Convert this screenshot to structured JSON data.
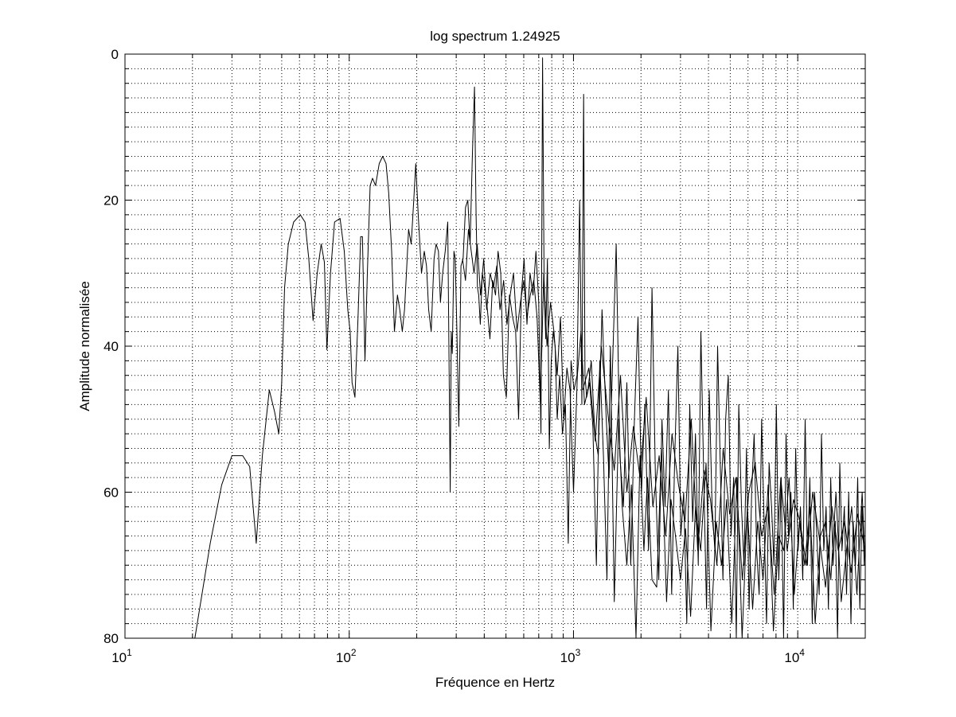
{
  "chart_data": {
    "type": "line",
    "title": "log spectrum 1.24925",
    "xlabel": "Fréquence en Hertz",
    "ylabel": "Amplitude normalisée",
    "xscale": "log",
    "xlim": [
      10,
      20000
    ],
    "ylim": [
      0,
      80
    ],
    "y_reversed": true,
    "grid": true,
    "grid_style": "dotted",
    "line_color": "#000000",
    "x_ticks": [
      {
        "value": 10,
        "base": "10",
        "exp": "1"
      },
      {
        "value": 100,
        "base": "10",
        "exp": "2"
      },
      {
        "value": 1000,
        "base": "10",
        "exp": "3"
      },
      {
        "value": 10000,
        "base": "10",
        "exp": "4"
      }
    ],
    "y_ticks": [
      {
        "value": 0,
        "label": "0"
      },
      {
        "value": 20,
        "label": "20"
      },
      {
        "value": 40,
        "label": "40"
      },
      {
        "value": 60,
        "label": "60"
      },
      {
        "value": 80,
        "label": "80"
      }
    ],
    "series": [
      {
        "x": [
          20.5,
          24,
          27,
          30,
          33.5,
          36,
          38.5,
          41,
          44,
          46.5,
          48.5,
          50,
          51.5,
          53.5,
          56.5,
          60.5,
          63.5,
          66,
          69,
          72,
          75,
          77.5,
          79.5,
          82.5,
          86,
          91,
          95,
          98.5,
          101,
          103,
          106,
          109.5,
          112.5,
          114.5,
          117.5,
          120.5,
          124,
          127,
          131,
          136,
          141,
          146,
          150,
          154.5,
          159,
          164,
          168,
          172.5,
          176.5,
          180,
          184,
          189,
          194,
          198,
          203,
          210,
          216,
          221,
          226,
          232,
          239,
          244,
          250,
          255,
          261,
          268,
          275,
          280,
          282,
          285,
          288,
          293,
          297,
          302,
          308,
          315,
          322,
          330,
          338,
          346,
          354,
          362,
          368,
          373,
          378,
          384,
          392,
          402,
          413,
          424,
          436,
          449,
          461,
          474,
          487,
          502,
          518,
          535,
          552,
          569,
          585,
          602,
          620,
          640,
          660,
          680,
          700,
          716,
          728,
          740,
          752,
          765,
          780,
          796,
          812,
          828,
          846,
          868,
          893,
          920,
          948,
          975,
          1005,
          1037,
          1065,
          1090,
          1110,
          1125,
          1145,
          1180,
          1220,
          1265,
          1310,
          1360,
          1410,
          1460,
          1520,
          1590,
          1650,
          1730,
          1810,
          1900,
          1980,
          2060,
          2140,
          2240,
          2350,
          2470,
          2600,
          2720,
          2850,
          3000,
          3160,
          3330,
          3500,
          3690,
          3900,
          4100,
          4330,
          4570,
          4820,
          5080,
          5360,
          5650,
          5960,
          6290,
          6630,
          7000,
          7380,
          7790,
          8220,
          8670,
          9150,
          9650,
          10180,
          10740,
          11330,
          11960,
          12620,
          13310,
          14040,
          14810,
          15630,
          16490,
          17400,
          18360,
          19370,
          20000
        ],
        "values": [
          80,
          67,
          59,
          55,
          55,
          56.5,
          67,
          55,
          46,
          49,
          52,
          45,
          32,
          26,
          23,
          22,
          23,
          28,
          36.5,
          30,
          26,
          28.5,
          40.5,
          30,
          23,
          22.5,
          27,
          35,
          38,
          45,
          47,
          36,
          25,
          25,
          42,
          30,
          18,
          17,
          18,
          15,
          14,
          15,
          19,
          27,
          38,
          33,
          35,
          38,
          35,
          30,
          24,
          26,
          20,
          15,
          22,
          30,
          27,
          29,
          35,
          38,
          28,
          26,
          27,
          34,
          30,
          27,
          23,
          49,
          60,
          38,
          41,
          27,
          28,
          38,
          51,
          29,
          28,
          21,
          20,
          26,
          14,
          4.5,
          22,
          32,
          33,
          37,
          30,
          32,
          35,
          39,
          31,
          33,
          27,
          30,
          44,
          47,
          33,
          36,
          38,
          50,
          33,
          28,
          37,
          30,
          33,
          27,
          34,
          52,
          0.5,
          32,
          39,
          28,
          54,
          42,
          38,
          40,
          50,
          44,
          52,
          48,
          67,
          42,
          46,
          44,
          20,
          48,
          5.5,
          44,
          47,
          45,
          51,
          70,
          42,
          55,
          72,
          40,
          75,
          50,
          62,
          70,
          59,
          80,
          55,
          68,
          58,
          72,
          73,
          54,
          75,
          61,
          66,
          72,
          65,
          77,
          62,
          68,
          56,
          79,
          64,
          70,
          61,
          78,
          58,
          80,
          62,
          76,
          64,
          72,
          59,
          79,
          66,
          68,
          58,
          74,
          64,
          70,
          62,
          78,
          66,
          64,
          72,
          60,
          75,
          68,
          62,
          74,
          60,
          70
        ]
      },
      {
        "x": [
          320,
          330,
          340,
          350,
          360,
          372,
          385,
          398,
          410,
          425,
          440,
          455,
          470,
          488,
          505,
          522,
          540,
          560,
          580,
          600,
          620,
          642,
          665,
          688,
          712,
          737,
          762,
          790,
          818,
          846,
          875,
          905,
          935,
          965,
          1000,
          1040,
          1080,
          1120,
          1160,
          1200,
          1245,
          1290,
          1340,
          1390,
          1440,
          1495,
          1550,
          1610,
          1670,
          1730,
          1800,
          1870,
          1940,
          2010,
          2080,
          2160,
          2240,
          2320,
          2400,
          2480,
          2560,
          2650,
          2740,
          2830,
          2920,
          3010,
          3100,
          3200,
          3300,
          3400,
          3500,
          3600,
          3700,
          3810,
          3920,
          4030,
          4150,
          4270,
          4390,
          4510,
          4640,
          4770,
          4900,
          5040,
          5180,
          5320,
          5460,
          5610,
          5760,
          5910,
          6070,
          6230,
          6390,
          6560,
          6730,
          6900,
          7080,
          7260,
          7450,
          7640,
          7830,
          8030,
          8230,
          8440,
          8650,
          8870,
          9090,
          9320,
          9550,
          9790,
          10030,
          10280,
          10530,
          10790,
          11050,
          11320,
          11600,
          11880,
          12170,
          12460,
          12760,
          13070,
          13380,
          13700,
          14030,
          14360,
          14700,
          15050,
          15400,
          15760,
          16130,
          16500,
          16880,
          17270,
          17670,
          18080,
          18500,
          18920,
          19350,
          19800
        ],
        "values": [
          28,
          31,
          24,
          27,
          30,
          26,
          33,
          28,
          35,
          30,
          32,
          29,
          35,
          31,
          37,
          33,
          30,
          38,
          34,
          31,
          36,
          33,
          31,
          36,
          48,
          30,
          40,
          34,
          38,
          44,
          36,
          50,
          43,
          46,
          60,
          44,
          38,
          48,
          46,
          42,
          52,
          55,
          35,
          48,
          58,
          42,
          26,
          55,
          62,
          45,
          70,
          50,
          36,
          60,
          48,
          68,
          32,
          58,
          72,
          50,
          62,
          46,
          74,
          55,
          40,
          66,
          60,
          78,
          48,
          64,
          52,
          70,
          38,
          58,
          76,
          46,
          62,
          68,
          40,
          56,
          72,
          50,
          44,
          66,
          58,
          80,
          48,
          62,
          70,
          54,
          76,
          60,
          52,
          68,
          74,
          50,
          64,
          78,
          56,
          62,
          70,
          48,
          72,
          58,
          80,
          52,
          66,
          60,
          76,
          54,
          68,
          62,
          72,
          50,
          70,
          58,
          78,
          60,
          66,
          74,
          52,
          68,
          62,
          76,
          58,
          70,
          64,
          80,
          56,
          68,
          62,
          74,
          60,
          78,
          64,
          70,
          58,
          76,
          62,
          70
        ]
      },
      {
        "x": [
          1100,
          1170,
          1250,
          1330,
          1420,
          1520,
          1620,
          1730,
          1850,
          1980,
          2110,
          2260,
          2410,
          2580,
          2750,
          2940,
          3140,
          3350,
          3580,
          3820,
          4080,
          4360,
          4650,
          4970,
          5300,
          5660,
          6050,
          6460,
          6900,
          7360,
          7860,
          8400,
          8970,
          9580,
          10230,
          10920,
          11660,
          12450,
          13300,
          14200,
          15160,
          16190,
          17290,
          18460,
          19700
        ],
        "values": [
          46,
          43,
          53,
          40,
          49,
          57,
          44,
          60,
          51,
          58,
          47,
          62,
          55,
          66,
          52,
          59,
          64,
          50,
          68,
          57,
          61,
          70,
          54,
          63,
          58,
          72,
          60,
          56,
          66,
          62,
          74,
          58,
          68,
          61,
          64,
          70,
          60,
          66,
          73,
          62,
          68,
          64,
          71,
          63,
          67
        ]
      }
    ]
  }
}
